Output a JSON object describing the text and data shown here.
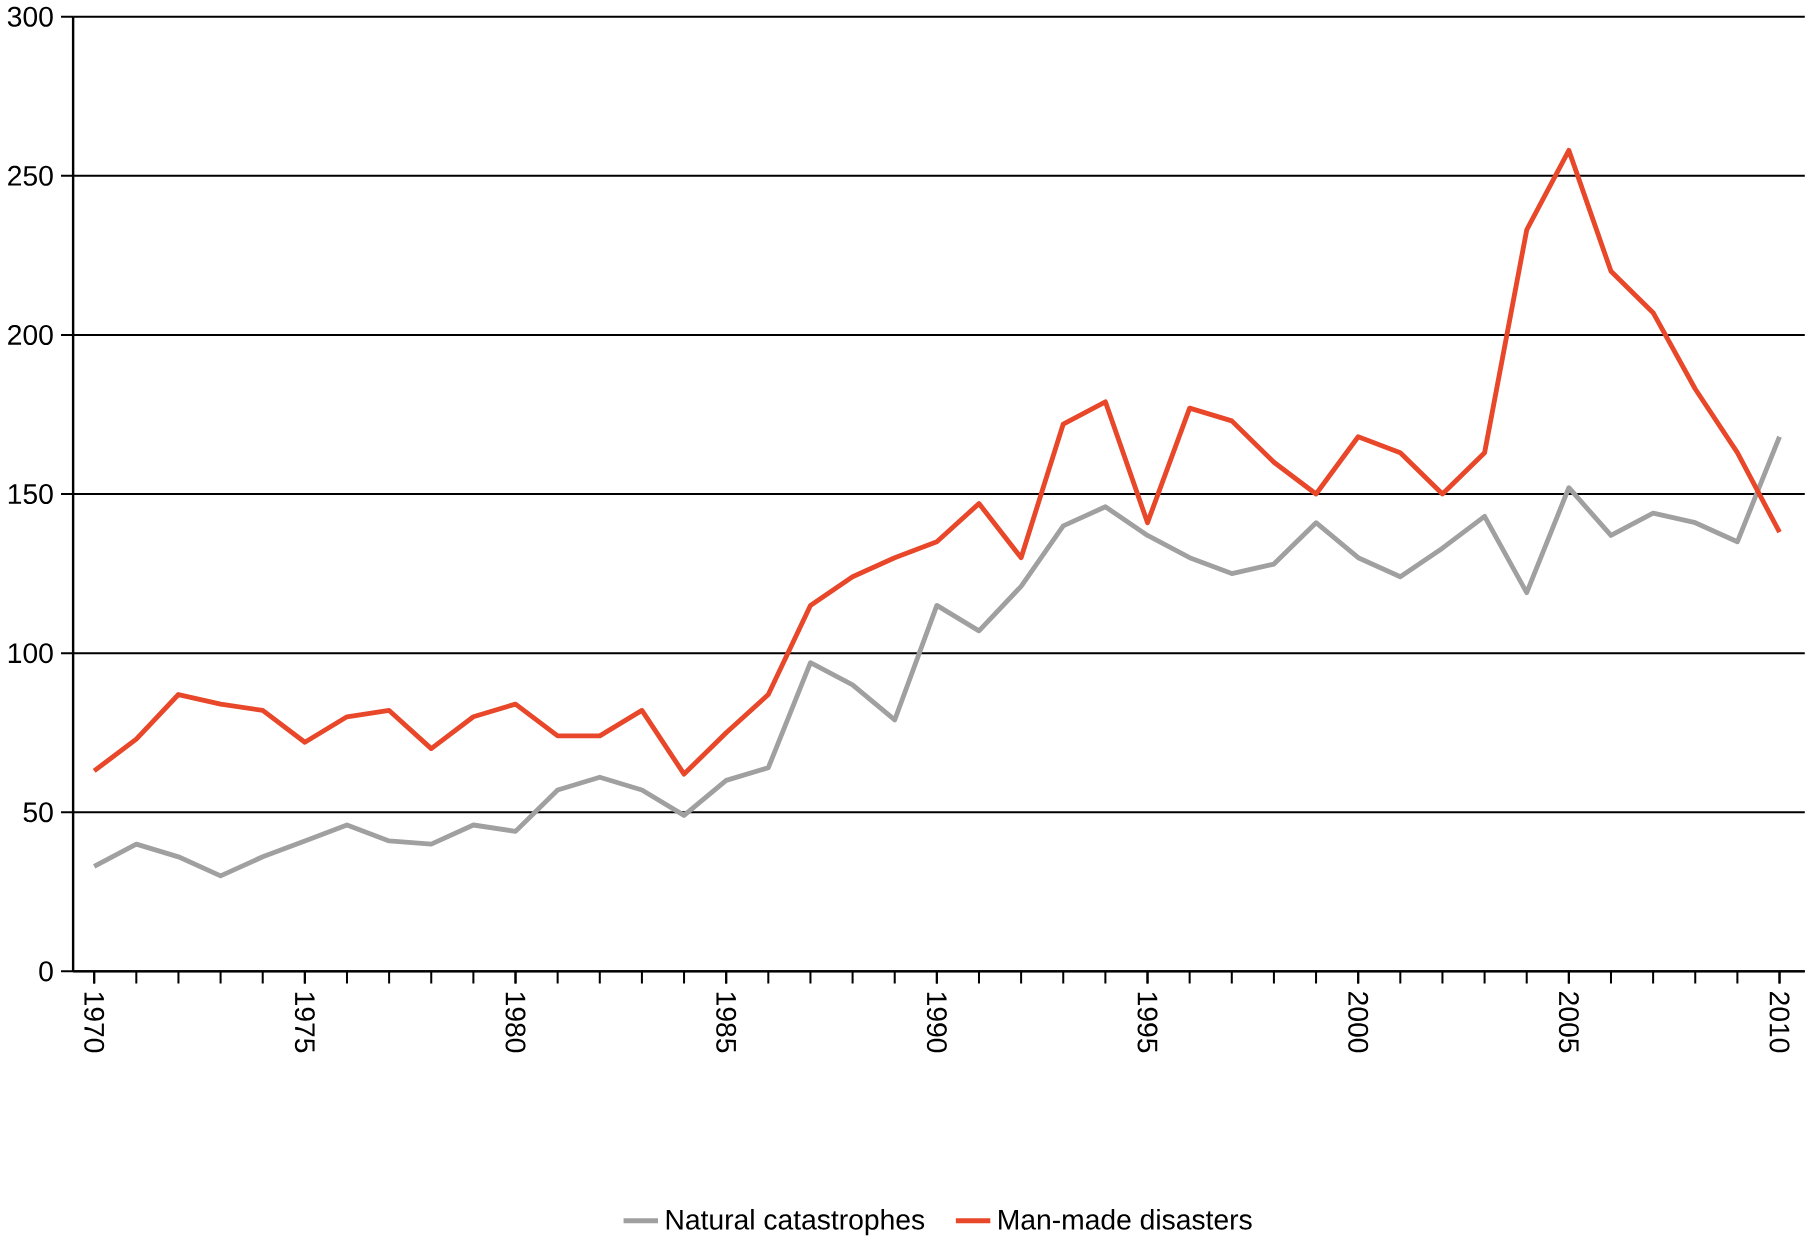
{
  "chart_data": {
    "type": "line",
    "x": [
      1970,
      1971,
      1972,
      1973,
      1974,
      1975,
      1976,
      1977,
      1978,
      1979,
      1980,
      1981,
      1982,
      1983,
      1984,
      1985,
      1986,
      1987,
      1988,
      1989,
      1990,
      1991,
      1992,
      1993,
      1994,
      1995,
      1996,
      1997,
      1998,
      1999,
      2000,
      2001,
      2002,
      2003,
      2004,
      2005,
      2006,
      2007,
      2008,
      2009,
      2010
    ],
    "series": [
      {
        "name": "Natural catastrophes",
        "color": "#a0a0a0",
        "values": [
          33,
          40,
          36,
          30,
          36,
          41,
          46,
          41,
          40,
          46,
          44,
          57,
          61,
          57,
          49,
          60,
          64,
          97,
          90,
          79,
          115,
          107,
          121,
          140,
          146,
          137,
          130,
          125,
          128,
          141,
          130,
          124,
          133,
          143,
          119,
          152,
          137,
          144,
          141,
          135,
          168
        ]
      },
      {
        "name": "Man-made disasters",
        "color": "#e8472a",
        "values": [
          63,
          73,
          87,
          84,
          82,
          72,
          80,
          82,
          70,
          80,
          84,
          74,
          74,
          82,
          62,
          75,
          87,
          115,
          124,
          130,
          135,
          147,
          130,
          172,
          179,
          141,
          177,
          173,
          160,
          150,
          168,
          163,
          150,
          163,
          233,
          258,
          220,
          207,
          183,
          163,
          138
        ]
      }
    ],
    "xlim": [
      1969.5,
      2010.6
    ],
    "xticks": [
      1970,
      1975,
      1980,
      1985,
      1990,
      1995,
      2000,
      2005,
      2010
    ],
    "ylim": [
      0,
      300
    ],
    "yticks": [
      0,
      50,
      100,
      150,
      200,
      250,
      300
    ],
    "grid": "y",
    "legend": "bottom",
    "marker": "none",
    "line_style": "solid"
  }
}
